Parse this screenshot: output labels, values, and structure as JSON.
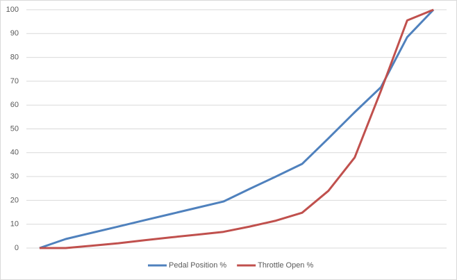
{
  "chart_data": {
    "type": "line",
    "categories": [
      null,
      null,
      null,
      null,
      null,
      null,
      null,
      null,
      null,
      null,
      null,
      null,
      null,
      null,
      null,
      null
    ],
    "series": [
      {
        "name": "Pedal Position %",
        "color": "#4f81bd",
        "values": [
          0,
          3.8,
          6.4,
          9.0,
          11.7,
          14.3,
          16.9,
          19.5,
          24.8,
          30.0,
          35.3,
          46,
          57,
          67.5,
          88.5,
          100
        ]
      },
      {
        "name": "Throttle Open %",
        "color": "#c0504d",
        "values": [
          0,
          0,
          1,
          2,
          3.3,
          4.5,
          5.6,
          6.8,
          9,
          11.5,
          14.8,
          24,
          38,
          66,
          95.5,
          100
        ]
      }
    ],
    "ylim": [
      0,
      100
    ],
    "yticks": [
      0,
      10,
      20,
      30,
      40,
      50,
      60,
      70,
      80,
      90,
      100
    ],
    "grid": true,
    "legend": "bottom"
  }
}
